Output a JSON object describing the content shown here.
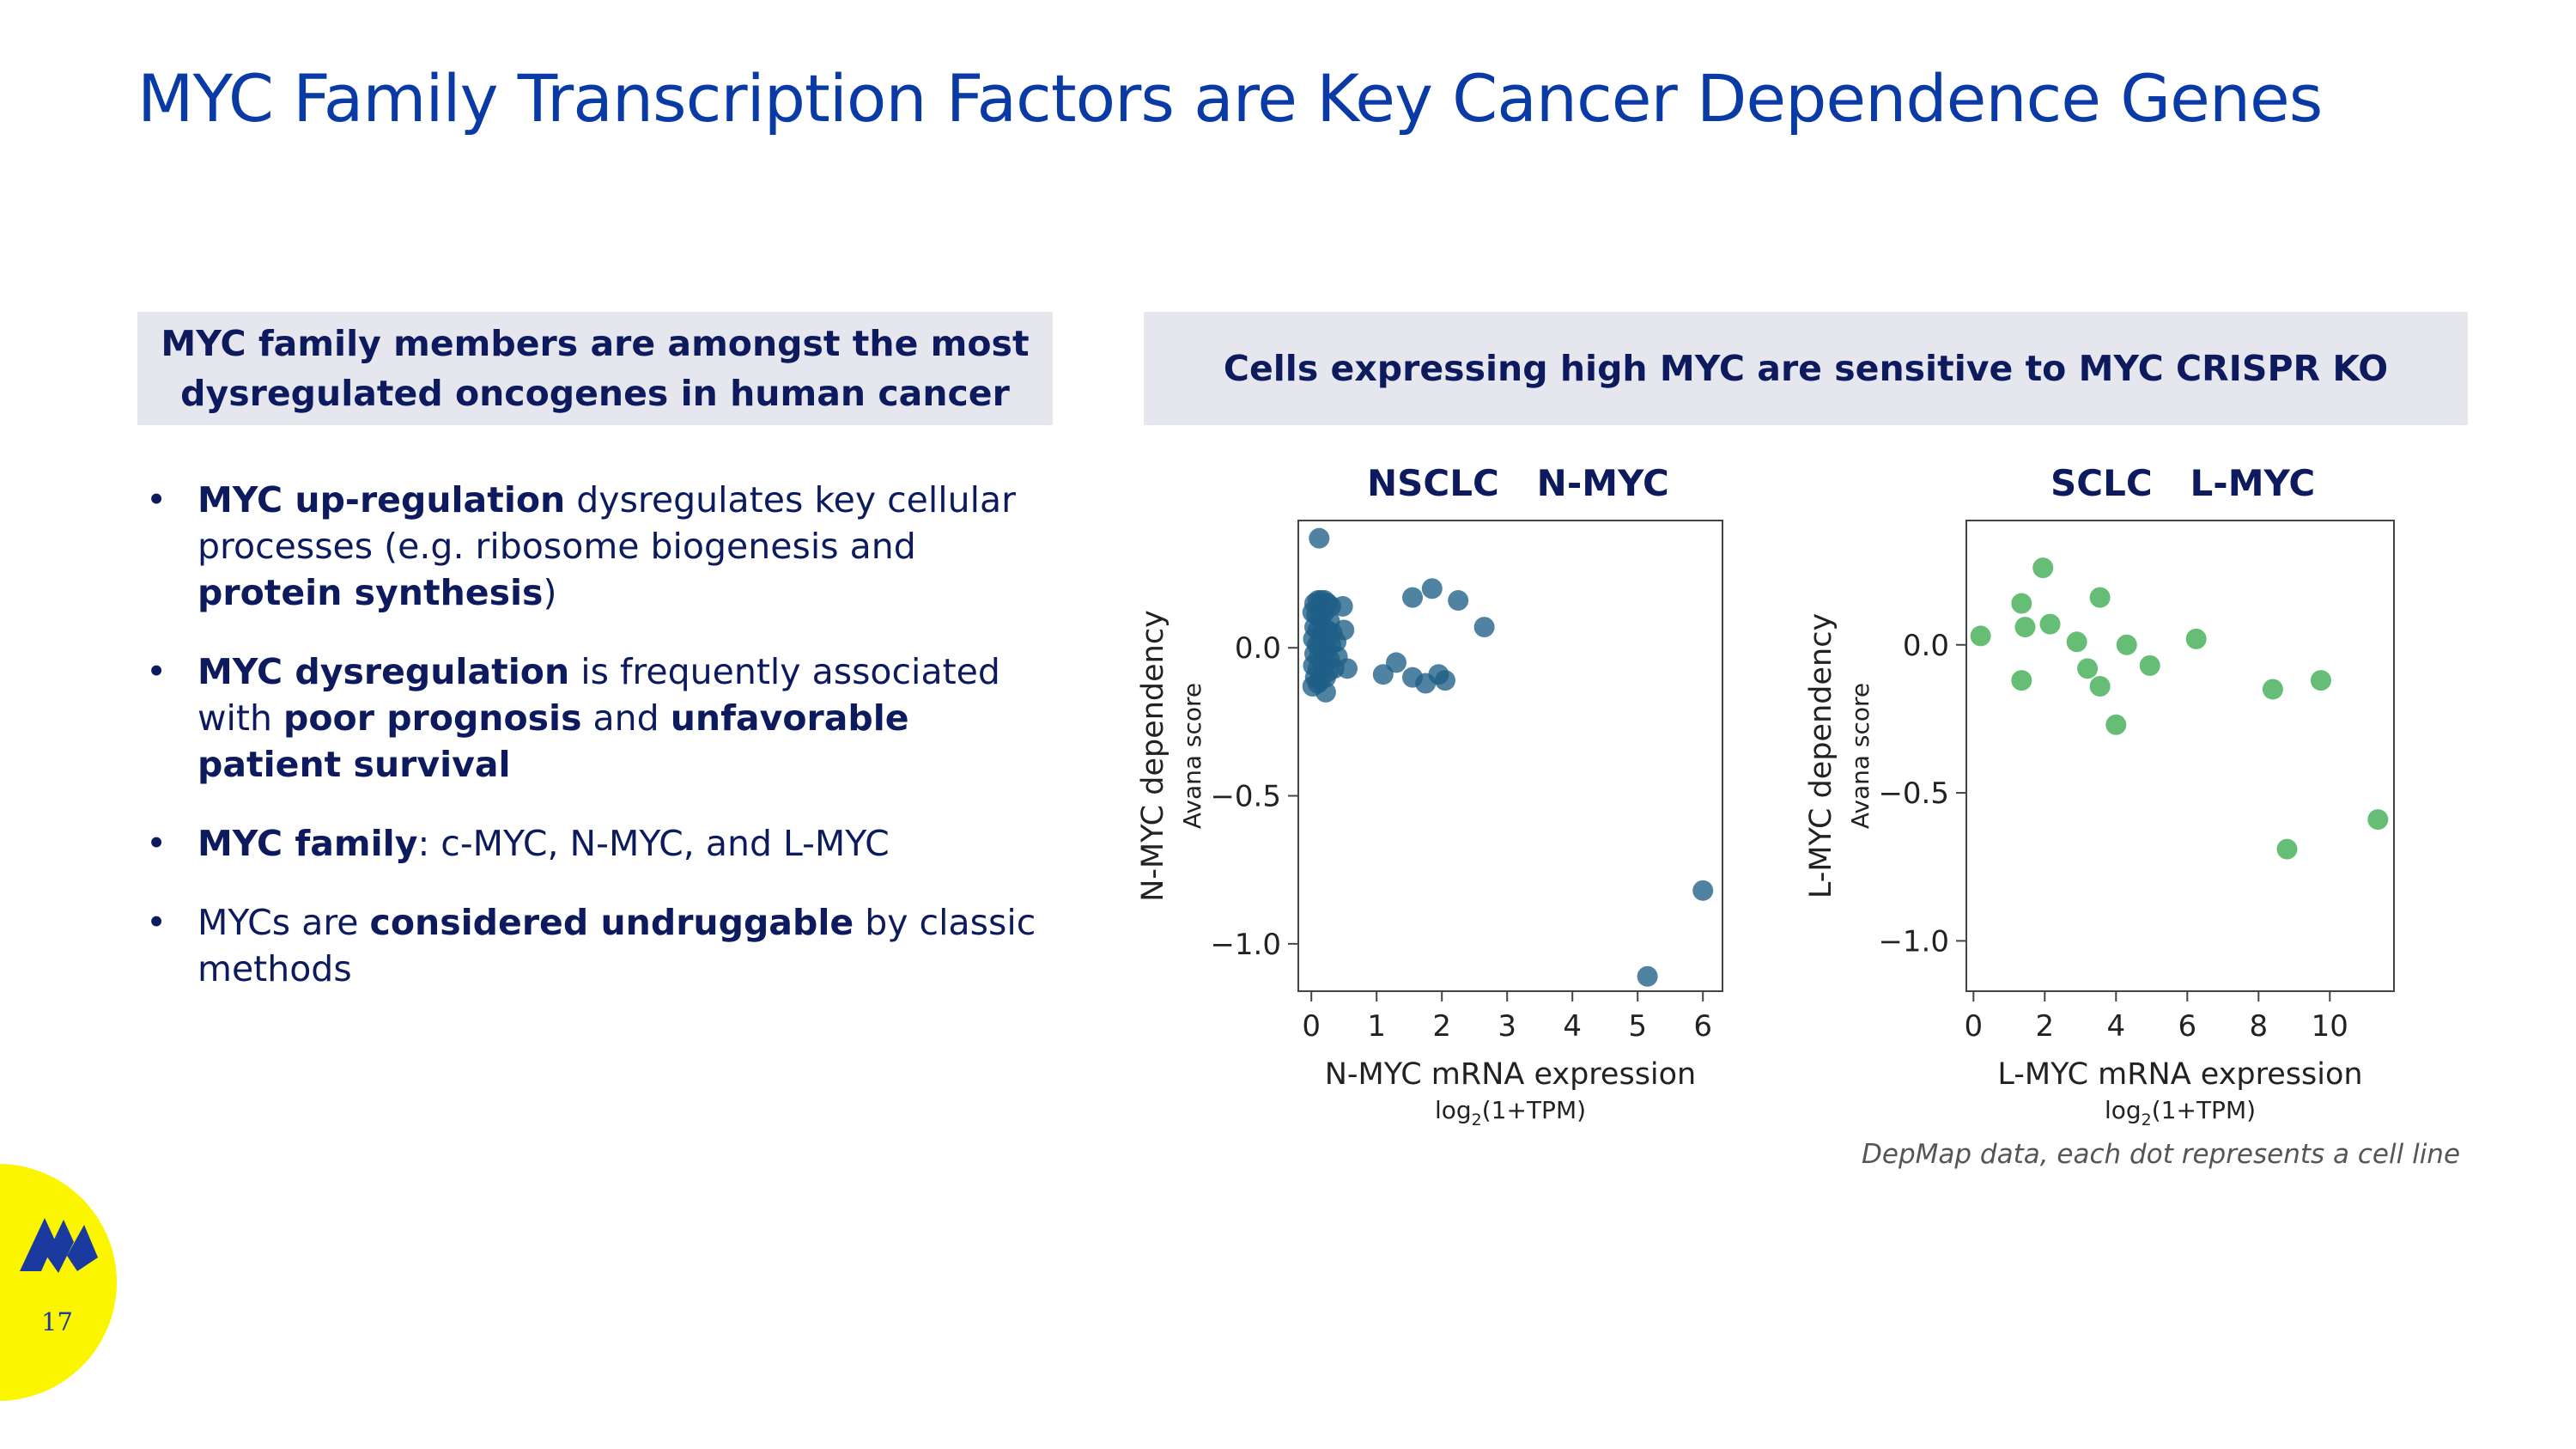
{
  "slide": {
    "title": "MYC Family Transcription Factors are Key Cancer Dependence Genes",
    "page_number": "17"
  },
  "left_panel": {
    "header": "MYC family members are amongst the most dysregulated oncogenes in human cancer",
    "bullets": [
      [
        {
          "t": "MYC up-regulation",
          "b": true
        },
        {
          "t": " dysregulates key cellular processes (e.g. ribosome biogenesis and ",
          "b": false
        },
        {
          "t": "protein synthesis",
          "b": true
        },
        {
          "t": ")",
          "b": false
        }
      ],
      [
        {
          "t": "MYC dysregulation",
          "b": true
        },
        {
          "t": " is frequently associated with ",
          "b": false
        },
        {
          "t": "poor prognosis",
          "b": true
        },
        {
          "t": " and ",
          "b": false
        },
        {
          "t": "unfavorable patient survival",
          "b": true
        }
      ],
      [
        {
          "t": "MYC family",
          "b": true
        },
        {
          "t": ": c-MYC, N-MYC, and L-MYC",
          "b": false
        }
      ],
      [
        {
          "t": "MYCs are ",
          "b": false
        },
        {
          "t": "considered undruggable",
          "b": true
        },
        {
          "t": " by classic methods",
          "b": false
        }
      ]
    ]
  },
  "right_panel": {
    "header": "Cells expressing high MYC are sensitive to MYC CRISPR KO",
    "footnote": "DepMap data, each dot represents a cell line"
  },
  "colors": {
    "title": "#0a3aa6",
    "dark_navy": "#0d1b5e",
    "header_bg": "#e6e7ee",
    "nmyc_points": "#1f5f87",
    "lmyc_points": "#3aaa4f",
    "logo_yellow": "#fbf500",
    "logo_blue": "#1b3aa0"
  },
  "chart_data": [
    {
      "type": "scatter",
      "title": "NSCLC   N-MYC",
      "xlabel": "N-MYC mRNA expression",
      "xlabel_sub": "log2(1+TPM)",
      "ylabel": "N-MYC dependency",
      "ylabel_sub": "Avana score",
      "xlim": [
        -0.2,
        6.3
      ],
      "ylim": [
        -1.16,
        0.43
      ],
      "xticks": [
        0,
        1,
        2,
        3,
        4,
        5,
        6
      ],
      "yticks": [
        0.0,
        -0.5,
        -1.0
      ],
      "ytick_labels": [
        "0.0",
        "−0.5",
        "−1.0"
      ],
      "point_color": "#1f5f87",
      "points": [
        [
          0.12,
          0.37
        ],
        [
          0.05,
          0.15
        ],
        [
          0.1,
          0.16
        ],
        [
          0.15,
          0.16
        ],
        [
          0.2,
          0.16
        ],
        [
          0.25,
          0.15
        ],
        [
          0.3,
          0.14
        ],
        [
          0.48,
          0.14
        ],
        [
          0.02,
          0.12
        ],
        [
          0.08,
          0.11
        ],
        [
          0.14,
          0.1
        ],
        [
          0.2,
          0.12
        ],
        [
          0.28,
          0.09
        ],
        [
          0.05,
          0.07
        ],
        [
          0.1,
          0.06
        ],
        [
          0.18,
          0.05
        ],
        [
          0.24,
          0.06
        ],
        [
          0.32,
          0.05
        ],
        [
          0.5,
          0.06
        ],
        [
          0.03,
          0.03
        ],
        [
          0.09,
          0.01
        ],
        [
          0.15,
          0.02
        ],
        [
          0.22,
          0.0
        ],
        [
          0.3,
          0.01
        ],
        [
          0.38,
          0.02
        ],
        [
          0.05,
          -0.02
        ],
        [
          0.12,
          -0.03
        ],
        [
          0.2,
          -0.02
        ],
        [
          0.28,
          -0.04
        ],
        [
          0.4,
          -0.03
        ],
        [
          0.03,
          -0.06
        ],
        [
          0.1,
          -0.07
        ],
        [
          0.18,
          -0.06
        ],
        [
          0.26,
          -0.08
        ],
        [
          0.35,
          -0.07
        ],
        [
          0.55,
          -0.07
        ],
        [
          0.06,
          -0.1
        ],
        [
          0.14,
          -0.11
        ],
        [
          0.22,
          -0.1
        ],
        [
          0.02,
          -0.13
        ],
        [
          0.1,
          -0.12
        ],
        [
          0.22,
          -0.15
        ],
        [
          1.55,
          0.17
        ],
        [
          1.85,
          0.2
        ],
        [
          2.25,
          0.16
        ],
        [
          2.65,
          0.07
        ],
        [
          1.3,
          -0.05
        ],
        [
          1.1,
          -0.09
        ],
        [
          1.55,
          -0.1
        ],
        [
          1.75,
          -0.12
        ],
        [
          1.95,
          -0.09
        ],
        [
          2.05,
          -0.11
        ],
        [
          6.0,
          -0.82
        ],
        [
          5.15,
          -1.11
        ]
      ]
    },
    {
      "type": "scatter",
      "title": "SCLC   L-MYC",
      "xlabel": "L-MYC mRNA expression",
      "xlabel_sub": "log2(1+TPM)",
      "ylabel": "L-MYC dependency",
      "ylabel_sub": "Avana score",
      "xlim": [
        -0.2,
        11.8
      ],
      "ylim": [
        -1.17,
        0.42
      ],
      "xticks": [
        0,
        2,
        4,
        6,
        8,
        10
      ],
      "yticks": [
        0.0,
        -0.5,
        -1.0
      ],
      "ytick_labels": [
        "0.0",
        "−0.5",
        "−1.0"
      ],
      "point_color": "#3aaa4f",
      "points": [
        [
          0.2,
          0.03
        ],
        [
          1.35,
          0.14
        ],
        [
          1.45,
          0.06
        ],
        [
          1.35,
          -0.12
        ],
        [
          1.95,
          0.26
        ],
        [
          2.15,
          0.07
        ],
        [
          2.9,
          0.01
        ],
        [
          3.2,
          -0.08
        ],
        [
          3.55,
          0.16
        ],
        [
          3.55,
          -0.14
        ],
        [
          4.0,
          -0.27
        ],
        [
          4.3,
          0.0
        ],
        [
          4.95,
          -0.07
        ],
        [
          6.25,
          0.02
        ],
        [
          8.4,
          -0.15
        ],
        [
          8.8,
          -0.69
        ],
        [
          9.75,
          -0.12
        ],
        [
          11.35,
          -0.59
        ]
      ]
    }
  ]
}
